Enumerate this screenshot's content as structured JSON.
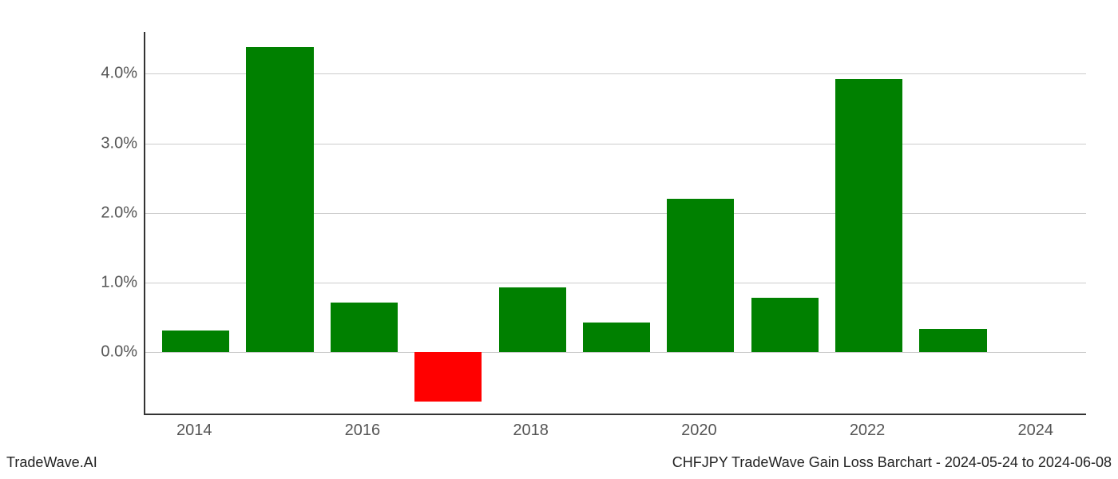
{
  "chart": {
    "type": "bar",
    "years": [
      2014,
      2015,
      2016,
      2017,
      2018,
      2019,
      2020,
      2021,
      2022,
      2023
    ],
    "values": [
      0.32,
      4.38,
      0.72,
      -0.7,
      0.93,
      0.43,
      2.2,
      0.78,
      3.92,
      0.34
    ],
    "bar_colors": [
      "#008000",
      "#008000",
      "#008000",
      "#ff0000",
      "#008000",
      "#008000",
      "#008000",
      "#008000",
      "#008000",
      "#008000"
    ],
    "x_tick_years": [
      2014,
      2016,
      2018,
      2020,
      2022,
      2024
    ],
    "x_tick_labels": [
      "2014",
      "2016",
      "2018",
      "2020",
      "2022",
      "2024"
    ],
    "y_ticks": [
      0.0,
      1.0,
      2.0,
      3.0,
      4.0
    ],
    "y_tick_labels": [
      "0.0%",
      "1.0%",
      "2.0%",
      "3.0%",
      "4.0%"
    ],
    "y_min": -0.9,
    "y_max": 4.6,
    "x_min": 2013.4,
    "x_max": 2024.6,
    "bar_width_years": 0.8,
    "background_color": "#ffffff",
    "grid_color": "#cccccc",
    "axis_color": "#333333",
    "tick_label_color": "#555555",
    "tick_fontsize": 20,
    "footer_fontsize": 18
  },
  "footer": {
    "left": "TradeWave.AI",
    "right": "CHFJPY TradeWave Gain Loss Barchart - 2024-05-24 to 2024-06-08"
  }
}
